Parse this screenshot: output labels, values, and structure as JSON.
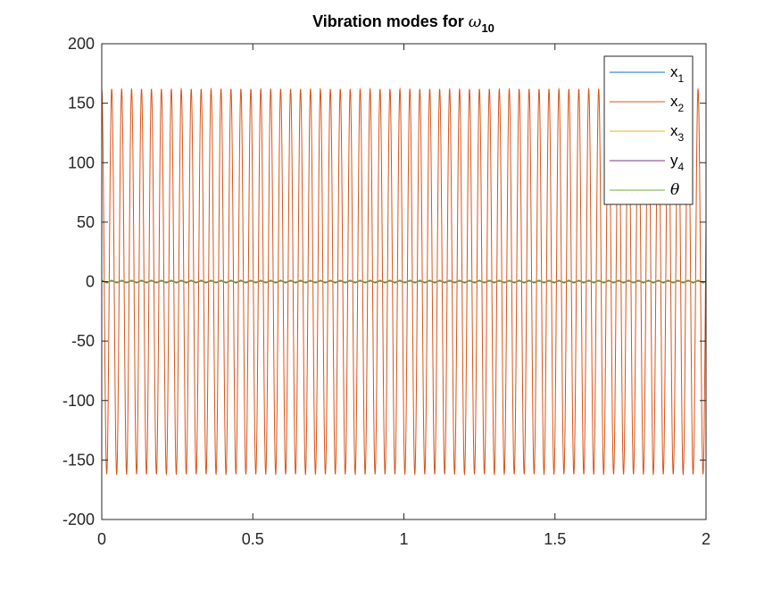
{
  "chart_data": {
    "type": "line",
    "title": {
      "text": "Vibration modes for ",
      "symbol": "ω",
      "subscript": "10"
    },
    "xlabel": "",
    "ylabel": "",
    "xlim": [
      0,
      2
    ],
    "ylim": [
      -200,
      200
    ],
    "x_ticks": [
      "0",
      "0.5",
      "1",
      "1.5",
      "2"
    ],
    "y_ticks": [
      "200",
      "150",
      "100",
      "50",
      "0",
      "-50",
      "-100",
      "-150",
      "-200"
    ],
    "grid": false,
    "legend_position": "top-right",
    "series": [
      {
        "name": "x",
        "sub": "1",
        "color": "#0072BD",
        "amplitude": 0.4,
        "frequency_hz": 30.4,
        "phase_deg": 90
      },
      {
        "name": "x",
        "sub": "2",
        "color": "#D95319",
        "amplitude": 162,
        "frequency_hz": 30.4,
        "phase_deg": 90
      },
      {
        "name": "x",
        "sub": "3",
        "color": "#EDB120",
        "amplitude": 0.3,
        "frequency_hz": 30.4,
        "phase_deg": 90
      },
      {
        "name": "y",
        "sub": "4",
        "color": "#7E2F8E",
        "amplitude": 0.6,
        "frequency_hz": 30.4,
        "phase_deg": 90
      },
      {
        "name": "θ",
        "sub": "",
        "color": "#77AC30",
        "amplitude": 1.2,
        "frequency_hz": 30.4,
        "phase_deg": 90
      }
    ]
  }
}
